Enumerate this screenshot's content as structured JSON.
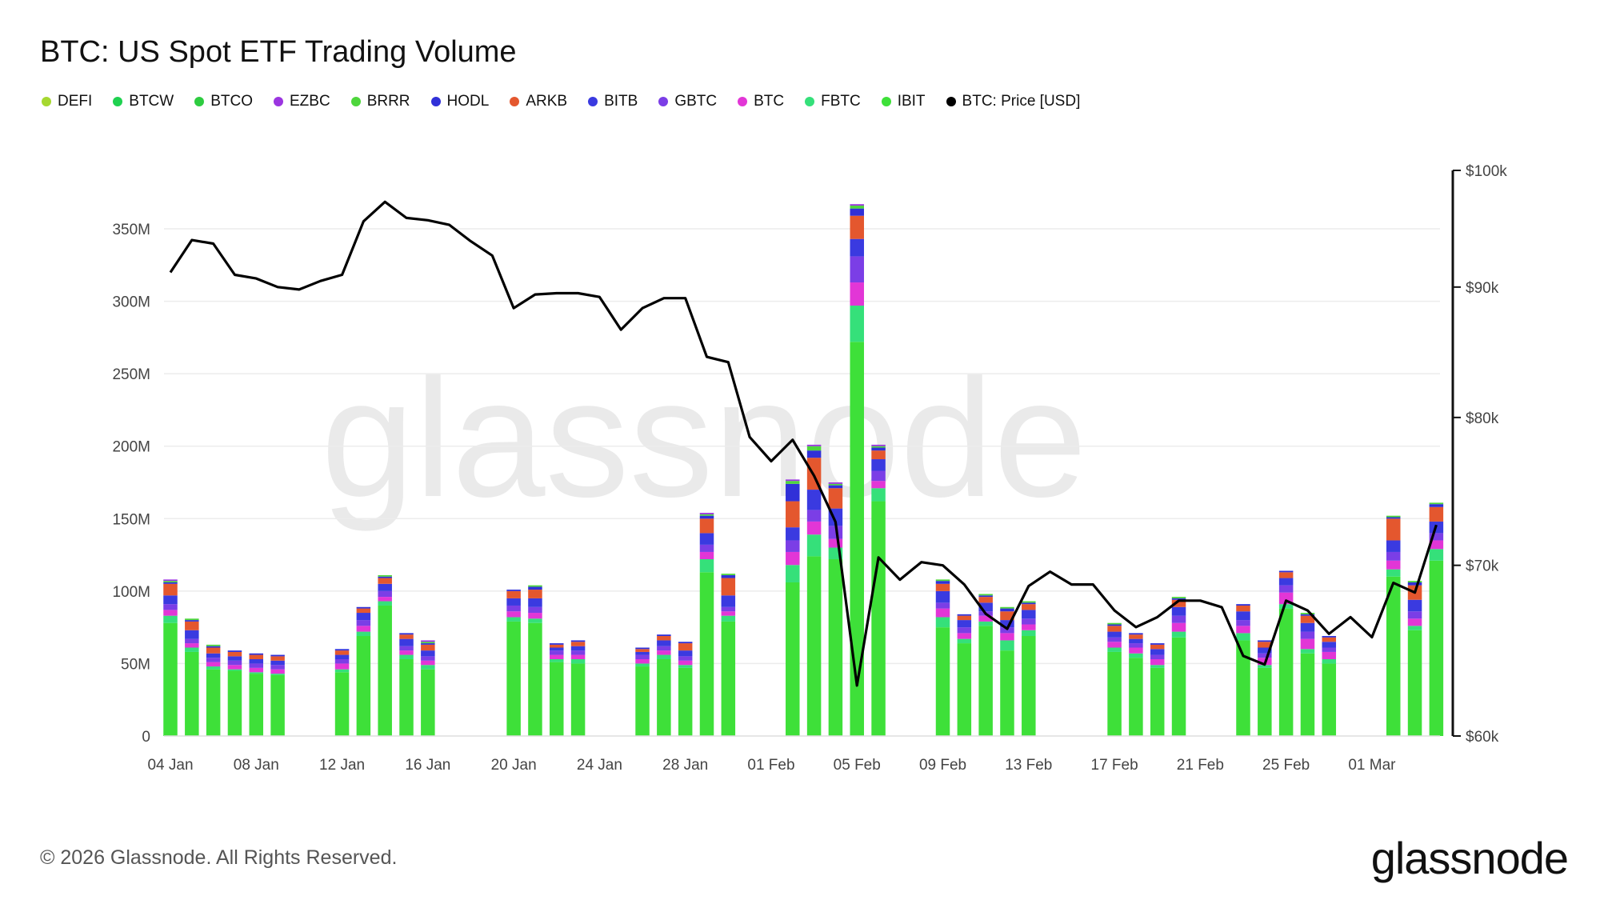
{
  "header": {
    "title": "BTC: US Spot ETF Trading Volume"
  },
  "footer": {
    "copyright": "© 2026 Glassnode. All Rights Reserved.",
    "logo": "glassnode"
  },
  "watermark": "glassnode",
  "chart_data": {
    "type": "bar",
    "stacked": true,
    "title": "BTC: US Spot ETF Trading Volume",
    "left_axis": {
      "ticks": [
        "0",
        "50M",
        "100M",
        "150M",
        "200M",
        "250M",
        "300M",
        "350M"
      ],
      "ylim": [
        0,
        390
      ],
      "unit": "M"
    },
    "right_axis": {
      "ticks": [
        "$60k",
        "$70k",
        "$80k",
        "$90k",
        "$100k"
      ],
      "ylim": [
        60,
        100
      ],
      "scale": "log"
    },
    "x_ticks": [
      "04 Jan",
      "08 Jan",
      "12 Jan",
      "16 Jan",
      "20 Jan",
      "24 Jan",
      "28 Jan",
      "01 Feb",
      "05 Feb",
      "09 Feb",
      "13 Feb",
      "17 Feb",
      "21 Feb",
      "25 Feb",
      "01 Mar"
    ],
    "grid": true,
    "legend_position": "top-left",
    "series": [
      {
        "name": "IBIT",
        "color": "#3ee039"
      },
      {
        "name": "FBTC",
        "color": "#35e07a"
      },
      {
        "name": "BTC",
        "color": "#e236d6"
      },
      {
        "name": "GBTC",
        "color": "#7b3ee6"
      },
      {
        "name": "BITB",
        "color": "#3a3ae0"
      },
      {
        "name": "ARKB",
        "color": "#e4572e"
      },
      {
        "name": "HODL",
        "color": "#3030d8"
      },
      {
        "name": "BRRR",
        "color": "#4ed63c"
      },
      {
        "name": "EZBC",
        "color": "#9b35e0"
      },
      {
        "name": "BTCO",
        "color": "#2ecc40"
      },
      {
        "name": "BTCW",
        "color": "#1fd150"
      },
      {
        "name": "DEFI",
        "color": "#a6d830"
      }
    ],
    "legend_order": [
      "DEFI",
      "BTCW",
      "BTCO",
      "EZBC",
      "BRRR",
      "HODL",
      "ARKB",
      "BITB",
      "GBTC",
      "BTC",
      "FBTC",
      "IBIT",
      "BTC: Price [USD]"
    ],
    "price_series": {
      "name": "BTC: Price [USD]",
      "color": "#000000"
    },
    "days": [
      {
        "date": "04 Jan",
        "day": 0,
        "bar": [
          78,
          5,
          4,
          4,
          6,
          8,
          1,
          1,
          1
        ],
        "price": 91.2
      },
      {
        "date": "05 Jan",
        "day": 1,
        "bar": [
          58,
          3,
          3,
          3,
          6,
          6,
          1,
          1,
          0
        ],
        "price": 93.9
      },
      {
        "date": "06 Jan",
        "day": 2,
        "bar": [
          46,
          2,
          3,
          3,
          3,
          4,
          1,
          1,
          0
        ],
        "price": 93.6
      },
      {
        "date": "07 Jan",
        "day": 3,
        "bar": [
          45,
          1,
          3,
          3,
          3,
          3,
          1,
          0,
          0
        ],
        "price": 91.0
      },
      {
        "date": "08 Jan",
        "day": 4,
        "bar": [
          43,
          1,
          3,
          3,
          3,
          3,
          1,
          0,
          0
        ],
        "price": 90.7
      },
      {
        "date": "09 Jan",
        "day": 5,
        "bar": [
          42,
          1,
          3,
          3,
          3,
          3,
          1,
          0,
          0
        ],
        "price": 90.0
      },
      {
        "date": "10 Jan",
        "day": 6,
        "bar": null,
        "price": 89.8
      },
      {
        "date": "11 Jan",
        "day": 7,
        "bar": null,
        "price": 90.5
      },
      {
        "date": "12 Jan",
        "day": 8,
        "bar": [
          44,
          2,
          4,
          3,
          3,
          3,
          1,
          0,
          0
        ],
        "price": 91.0
      },
      {
        "date": "13 Jan",
        "day": 9,
        "bar": [
          69,
          3,
          4,
          4,
          5,
          3,
          1,
          0,
          0
        ],
        "price": 95.5
      },
      {
        "date": "14 Jan",
        "day": 10,
        "bar": [
          90,
          3,
          3,
          4,
          5,
          4,
          1,
          1,
          0
        ],
        "price": 97.2
      },
      {
        "date": "15 Jan",
        "day": 11,
        "bar": [
          53,
          3,
          3,
          3,
          5,
          3,
          1,
          0,
          0
        ],
        "price": 95.8
      },
      {
        "date": "16 Jan",
        "day": 12,
        "bar": [
          46,
          3,
          3,
          3,
          4,
          4,
          1,
          1,
          1
        ],
        "price": 95.6
      },
      {
        "date": "17 Jan",
        "day": 13,
        "bar": null,
        "price": 95.2
      },
      {
        "date": "18 Jan",
        "day": 14,
        "bar": null,
        "price": 93.8
      },
      {
        "date": "19 Jan",
        "day": 15,
        "bar": null,
        "price": 92.6
      },
      {
        "date": "20 Jan",
        "day": 16,
        "bar": [
          79,
          3,
          4,
          4,
          5,
          5,
          1,
          0,
          0
        ],
        "price": 88.3
      },
      {
        "date": "21 Jan",
        "day": 17,
        "bar": [
          78,
          3,
          4,
          4,
          6,
          6,
          2,
          1,
          0
        ],
        "price": 89.4
      },
      {
        "date": "22 Jan",
        "day": 18,
        "bar": [
          51,
          2,
          3,
          3,
          2,
          2,
          1,
          0,
          0
        ],
        "price": 89.5
      },
      {
        "date": "23 Jan",
        "day": 19,
        "bar": [
          50,
          3,
          3,
          3,
          3,
          3,
          1,
          0,
          0
        ],
        "price": 89.5
      },
      {
        "date": "24 Jan",
        "day": 20,
        "bar": null,
        "price": 89.2
      },
      {
        "date": "25 Jan",
        "day": 21,
        "bar": null,
        "price": 86.6
      },
      {
        "date": "26 Jan",
        "day": 22,
        "bar": [
          48,
          2,
          3,
          3,
          2,
          2,
          1,
          0,
          0
        ],
        "price": 88.3
      },
      {
        "date": "27 Jan",
        "day": 23,
        "bar": [
          53,
          3,
          3,
          3,
          4,
          3,
          1,
          0,
          0
        ],
        "price": 89.1
      },
      {
        "date": "28 Jan",
        "day": 24,
        "bar": [
          47,
          2,
          3,
          3,
          4,
          5,
          1,
          0,
          0
        ],
        "price": 89.1
      },
      {
        "date": "29 Jan",
        "day": 25,
        "bar": [
          113,
          9,
          5,
          5,
          8,
          10,
          2,
          1,
          1
        ],
        "price": 84.5
      },
      {
        "date": "30 Jan",
        "day": 26,
        "bar": [
          79,
          4,
          3,
          3,
          8,
          12,
          2,
          1,
          0
        ],
        "price": 84.1
      },
      {
        "date": "31 Jan",
        "day": 27,
        "bar": null,
        "price": 78.6
      },
      {
        "date": "01 Feb",
        "day": 28,
        "bar": null,
        "price": 76.9
      },
      {
        "date": "02 Feb",
        "day": 29,
        "bar": [
          106,
          12,
          9,
          8,
          9,
          18,
          12,
          2,
          1
        ],
        "price": 78.4
      },
      {
        "date": "03 Feb",
        "day": 30,
        "bar": [
          124,
          15,
          9,
          8,
          14,
          22,
          5,
          3,
          1
        ],
        "price": 75.9
      },
      {
        "date": "04 Feb",
        "day": 31,
        "bar": [
          122,
          8,
          6,
          9,
          12,
          14,
          2,
          1,
          1
        ],
        "price": 72.8
      },
      {
        "date": "05 Feb",
        "day": 32,
        "bar": [
          272,
          25,
          16,
          18,
          12,
          16,
          5,
          2,
          1
        ],
        "price": 62.8
      },
      {
        "date": "06 Feb",
        "day": 33,
        "bar": [
          162,
          9,
          5,
          7,
          8,
          6,
          2,
          1,
          1
        ],
        "price": 70.5
      },
      {
        "date": "07 Feb",
        "day": 34,
        "bar": null,
        "price": 69.1
      },
      {
        "date": "08 Feb",
        "day": 35,
        "bar": null,
        "price": 70.2
      },
      {
        "date": "09 Feb",
        "day": 36,
        "bar": [
          75,
          7,
          6,
          4,
          8,
          5,
          2,
          1,
          0
        ],
        "price": 70.0
      },
      {
        "date": "10 Feb",
        "day": 37,
        "bar": [
          64,
          3,
          4,
          4,
          5,
          3,
          1,
          0,
          0
        ],
        "price": 68.8
      },
      {
        "date": "11 Feb",
        "day": 38,
        "bar": [
          76,
          3,
          4,
          3,
          6,
          4,
          1,
          1,
          0
        ],
        "price": 67.0
      },
      {
        "date": "12 Feb",
        "day": 39,
        "bar": [
          59,
          7,
          5,
          4,
          5,
          6,
          2,
          1,
          0
        ],
        "price": 66.1
      },
      {
        "date": "13 Feb",
        "day": 40,
        "bar": [
          69,
          4,
          4,
          4,
          6,
          4,
          1,
          1,
          0
        ],
        "price": 68.7
      },
      {
        "date": "14 Feb",
        "day": 41,
        "bar": null,
        "price": 69.6
      },
      {
        "date": "15 Feb",
        "day": 42,
        "bar": null,
        "price": 68.8
      },
      {
        "date": "16 Feb",
        "day": 43,
        "bar": null,
        "price": 68.8
      },
      {
        "date": "17 Feb",
        "day": 44,
        "bar": [
          58,
          3,
          4,
          3,
          4,
          4,
          1,
          1,
          0
        ],
        "price": 67.2
      },
      {
        "date": "18 Feb",
        "day": 45,
        "bar": [
          54,
          3,
          4,
          3,
          3,
          3,
          1,
          0,
          0
        ],
        "price": 66.2
      },
      {
        "date": "19 Feb",
        "day": 46,
        "bar": [
          47,
          2,
          4,
          3,
          4,
          3,
          1,
          0,
          0
        ],
        "price": 66.8
      },
      {
        "date": "20 Feb",
        "day": 47,
        "bar": [
          68,
          4,
          6,
          5,
          6,
          5,
          1,
          1,
          0
        ],
        "price": 67.8
      },
      {
        "date": "21 Feb",
        "day": 48,
        "bar": null,
        "price": 67.8
      },
      {
        "date": "22 Feb",
        "day": 49,
        "bar": null,
        "price": 67.4
      },
      {
        "date": "23 Feb",
        "day": 50,
        "bar": [
          66,
          5,
          5,
          4,
          6,
          4,
          1,
          0,
          0
        ],
        "price": 64.5
      },
      {
        "date": "24 Feb",
        "day": 51,
        "bar": [
          47,
          2,
          5,
          3,
          4,
          4,
          1,
          0,
          0
        ],
        "price": 64.0
      },
      {
        "date": "25 Feb",
        "day": 52,
        "bar": [
          88,
          3,
          8,
          5,
          5,
          4,
          1,
          0,
          0
        ],
        "price": 67.8
      },
      {
        "date": "26 Feb",
        "day": 53,
        "bar": [
          57,
          3,
          7,
          5,
          6,
          5,
          1,
          1,
          0
        ],
        "price": 67.2
      },
      {
        "date": "27 Feb",
        "day": 54,
        "bar": [
          50,
          3,
          5,
          3,
          4,
          3,
          1,
          0,
          0
        ],
        "price": 65.8
      },
      {
        "date": "28 Feb",
        "day": 55,
        "bar": null,
        "price": 66.8
      },
      {
        "date": "01 Mar",
        "day": 56,
        "bar": null,
        "price": 65.6
      },
      {
        "date": "02 Mar",
        "day": 57,
        "bar": [
          110,
          5,
          6,
          6,
          8,
          15,
          1,
          1,
          0
        ],
        "price": 68.9
      },
      {
        "date": "03 Mar",
        "day": 58,
        "bar": [
          73,
          3,
          5,
          5,
          8,
          10,
          2,
          1,
          0
        ],
        "price": 68.3
      },
      {
        "date": "04 Mar",
        "day": 59,
        "bar": [
          121,
          8,
          6,
          5,
          8,
          10,
          2,
          1,
          0
        ],
        "price": 72.6
      }
    ]
  }
}
